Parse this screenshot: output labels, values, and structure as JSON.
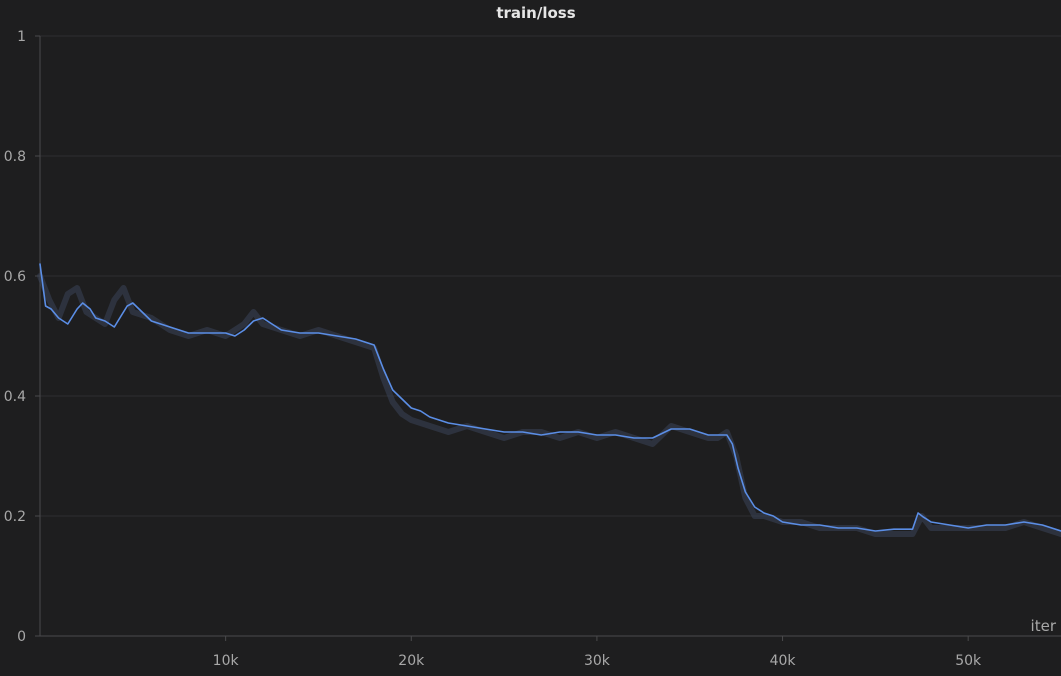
{
  "chart_data": {
    "type": "line",
    "title": "train/loss",
    "xlabel": "iter",
    "ylabel": "",
    "xlim": [
      0,
      55000
    ],
    "ylim": [
      0,
      1
    ],
    "x_ticks": [
      {
        "value": 10000,
        "label": "10k"
      },
      {
        "value": 20000,
        "label": "20k"
      },
      {
        "value": 30000,
        "label": "30k"
      },
      {
        "value": 40000,
        "label": "40k"
      },
      {
        "value": 50000,
        "label": "50k"
      }
    ],
    "y_ticks": [
      {
        "value": 0,
        "label": "0"
      },
      {
        "value": 0.2,
        "label": "0.2"
      },
      {
        "value": 0.4,
        "label": "0.4"
      },
      {
        "value": 0.6,
        "label": "0.6"
      },
      {
        "value": 0.8,
        "label": "0.8"
      },
      {
        "value": 1,
        "label": "1"
      }
    ],
    "grid": true,
    "series": [
      {
        "kind": "raw",
        "color": "#3a4458",
        "x": [
          0,
          500,
          1000,
          1500,
          2000,
          2500,
          3000,
          3500,
          4000,
          4500,
          5000,
          6000,
          7000,
          8000,
          9000,
          10000,
          11000,
          11500,
          12000,
          13000,
          14000,
          15000,
          16000,
          17000,
          18000,
          18500,
          19000,
          19500,
          20000,
          21000,
          22000,
          23000,
          24000,
          25000,
          26000,
          27000,
          28000,
          29000,
          30000,
          31000,
          32000,
          33000,
          34000,
          35000,
          36000,
          36500,
          37000,
          37500,
          38000,
          38500,
          39000,
          40000,
          41000,
          42000,
          43000,
          44000,
          45000,
          46000,
          47000,
          47500,
          48000,
          49000,
          50000,
          51000,
          52000,
          53000,
          54000,
          55000
        ],
        "y": [
          0.6,
          0.56,
          0.53,
          0.57,
          0.58,
          0.54,
          0.53,
          0.52,
          0.56,
          0.58,
          0.54,
          0.53,
          0.51,
          0.5,
          0.51,
          0.5,
          0.52,
          0.54,
          0.52,
          0.51,
          0.5,
          0.51,
          0.5,
          0.49,
          0.48,
          0.43,
          0.39,
          0.37,
          0.36,
          0.35,
          0.34,
          0.35,
          0.34,
          0.33,
          0.34,
          0.34,
          0.33,
          0.34,
          0.33,
          0.34,
          0.33,
          0.32,
          0.35,
          0.34,
          0.33,
          0.33,
          0.34,
          0.3,
          0.23,
          0.2,
          0.2,
          0.19,
          0.19,
          0.18,
          0.18,
          0.18,
          0.17,
          0.17,
          0.17,
          0.2,
          0.18,
          0.18,
          0.18,
          0.18,
          0.18,
          0.19,
          0.18,
          0.17
        ]
      },
      {
        "kind": "smoothed",
        "color": "#5b8ee6",
        "x": [
          0,
          300,
          600,
          1000,
          1500,
          2000,
          2300,
          2700,
          3000,
          3500,
          4000,
          4300,
          4700,
          5000,
          5500,
          6000,
          6500,
          7000,
          8000,
          9000,
          10000,
          10500,
          11000,
          11500,
          12000,
          12500,
          13000,
          14000,
          15000,
          16000,
          17000,
          18000,
          18500,
          19000,
          19500,
          20000,
          20500,
          21000,
          22000,
          23000,
          24000,
          25000,
          26000,
          27000,
          28000,
          29000,
          30000,
          31000,
          32000,
          33000,
          34000,
          35000,
          36000,
          36500,
          37000,
          37300,
          37600,
          38000,
          38500,
          39000,
          39500,
          40000,
          41000,
          42000,
          43000,
          44000,
          45000,
          46000,
          47000,
          47300,
          47600,
          48000,
          49000,
          50000,
          51000,
          52000,
          53000,
          54000,
          55000
        ],
        "y": [
          0.62,
          0.55,
          0.545,
          0.53,
          0.52,
          0.545,
          0.555,
          0.545,
          0.53,
          0.525,
          0.515,
          0.53,
          0.55,
          0.555,
          0.54,
          0.525,
          0.52,
          0.515,
          0.505,
          0.505,
          0.505,
          0.5,
          0.51,
          0.525,
          0.53,
          0.52,
          0.51,
          0.505,
          0.505,
          0.5,
          0.495,
          0.485,
          0.445,
          0.41,
          0.395,
          0.38,
          0.375,
          0.365,
          0.355,
          0.35,
          0.345,
          0.34,
          0.34,
          0.335,
          0.34,
          0.34,
          0.335,
          0.335,
          0.33,
          0.33,
          0.345,
          0.345,
          0.335,
          0.335,
          0.335,
          0.32,
          0.28,
          0.24,
          0.215,
          0.205,
          0.2,
          0.19,
          0.185,
          0.185,
          0.18,
          0.18,
          0.175,
          0.178,
          0.178,
          0.205,
          0.198,
          0.19,
          0.185,
          0.18,
          0.185,
          0.185,
          0.19,
          0.185,
          0.175
        ]
      }
    ]
  }
}
